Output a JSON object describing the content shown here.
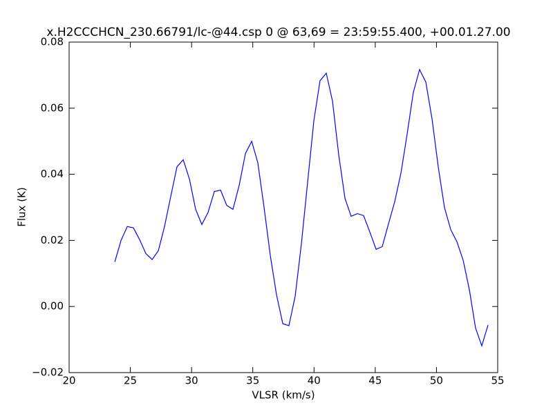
{
  "chart_data": {
    "type": "line",
    "title": "x.H2CCCHCN_230.66791/lc-@44.csp 0 @ 63,69 = 23:59:55.400, +00.01.27.00",
    "x_label": "VLSR (km/s)",
    "y_label": "Flux (K)",
    "x": [
      23.73,
      24.24,
      24.75,
      25.25,
      25.76,
      26.27,
      26.78,
      27.29,
      27.79,
      28.3,
      28.81,
      29.32,
      29.83,
      30.33,
      30.84,
      31.35,
      31.86,
      32.37,
      32.87,
      33.38,
      33.89,
      34.4,
      34.91,
      35.41,
      35.92,
      36.43,
      36.94,
      37.45,
      37.95,
      38.46,
      38.97,
      39.48,
      39.99,
      40.49,
      41.0,
      41.51,
      42.02,
      42.53,
      43.03,
      43.54,
      44.05,
      44.56,
      45.07,
      45.57,
      46.08,
      46.59,
      47.1,
      47.61,
      48.11,
      48.62,
      49.13,
      49.64,
      50.15,
      50.65,
      51.16,
      51.67,
      52.18,
      52.69,
      53.19,
      53.7,
      54.21
    ],
    "series": [
      {
        "color": "#0000ff",
        "values": [
          0.0135,
          0.02,
          0.0242,
          0.0238,
          0.0202,
          0.016,
          0.0142,
          0.0169,
          0.0242,
          0.0333,
          0.0423,
          0.0444,
          0.0385,
          0.0294,
          0.0248,
          0.0285,
          0.0348,
          0.0352,
          0.0306,
          0.0294,
          0.0367,
          0.0463,
          0.05,
          0.0435,
          0.03,
          0.0154,
          0.0035,
          -0.0052,
          -0.0058,
          0.0031,
          0.019,
          0.0377,
          0.0563,
          0.0683,
          0.0706,
          0.0621,
          0.0458,
          0.0327,
          0.0273,
          0.0281,
          0.0275,
          0.0225,
          0.0173,
          0.0181,
          0.025,
          0.0317,
          0.0404,
          0.0523,
          0.0648,
          0.0717,
          0.0679,
          0.0567,
          0.0421,
          0.03,
          0.0233,
          0.0196,
          0.014,
          0.005,
          -0.0065,
          -0.0119,
          -0.0056
        ]
      }
    ],
    "xlim": [
      20,
      55
    ],
    "xticks": [
      20,
      25,
      30,
      35,
      40,
      45,
      50,
      55
    ],
    "ylim": [
      -0.02,
      0.08
    ],
    "yticks": [
      {
        "value": -0.02,
        "label": "−0.02"
      },
      {
        "value": 0,
        "label": "0.00"
      },
      0.02,
      0.04,
      0.06,
      0.08
    ],
    "grid": false
  }
}
